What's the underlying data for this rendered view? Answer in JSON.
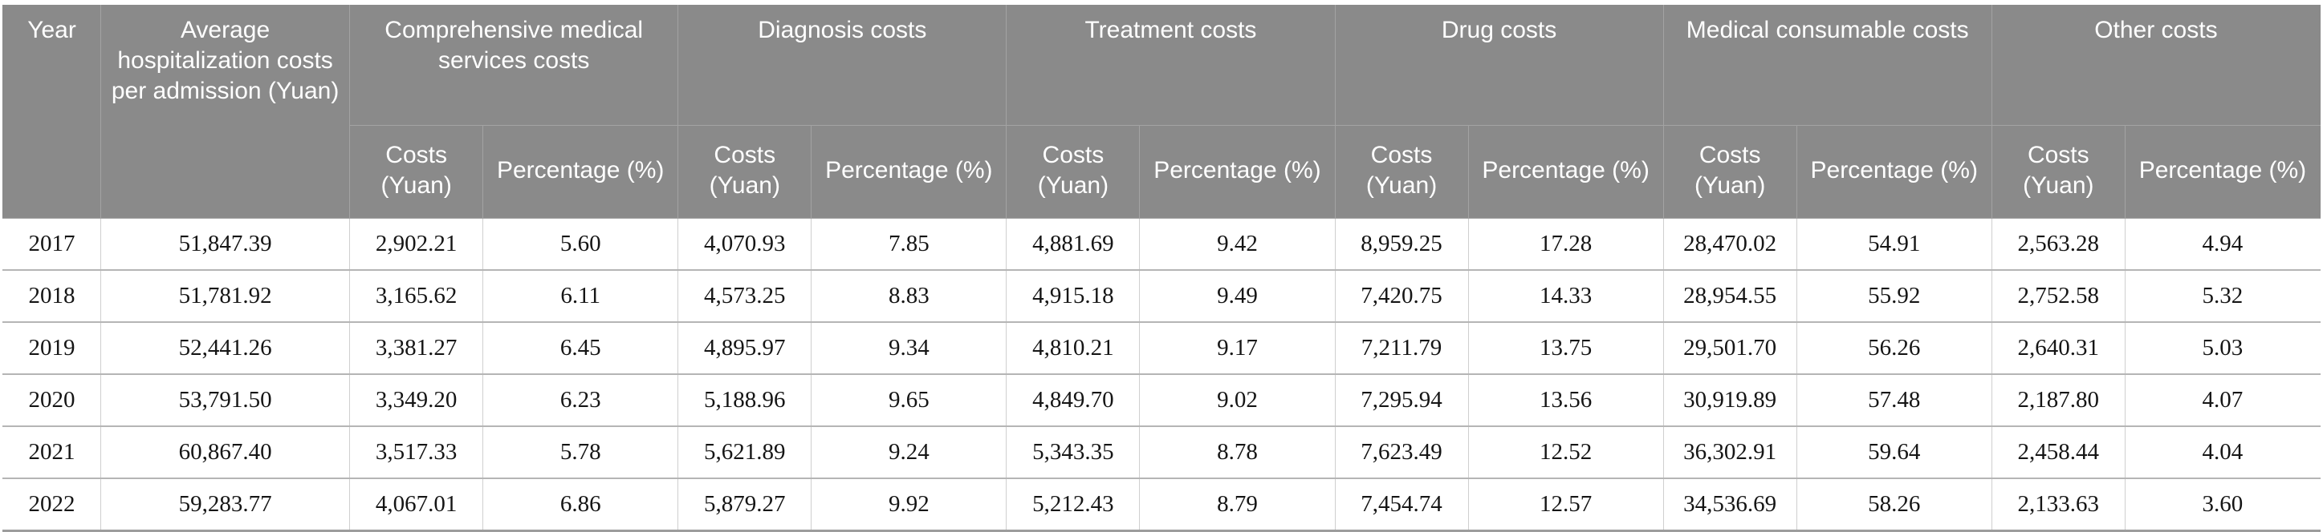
{
  "table": {
    "columns": {
      "year": "Year",
      "average": "Average hospitalization costs per admission (Yuan)",
      "costs": "Costs (Yuan)",
      "percentage": "Percentage (%)"
    },
    "groups": [
      "Comprehensive medical services costs",
      "Diagnosis costs",
      "Treatment costs",
      "Drug costs",
      "Medical consumable costs",
      "Other costs"
    ],
    "rows": [
      {
        "year": "2017",
        "average": "51,847.39",
        "values": [
          "2,902.21",
          "5.60",
          "4,070.93",
          "7.85",
          "4,881.69",
          "9.42",
          "8,959.25",
          "17.28",
          "28,470.02",
          "54.91",
          "2,563.28",
          "4.94"
        ]
      },
      {
        "year": "2018",
        "average": "51,781.92",
        "values": [
          "3,165.62",
          "6.11",
          "4,573.25",
          "8.83",
          "4,915.18",
          "9.49",
          "7,420.75",
          "14.33",
          "28,954.55",
          "55.92",
          "2,752.58",
          "5.32"
        ]
      },
      {
        "year": "2019",
        "average": "52,441.26",
        "values": [
          "3,381.27",
          "6.45",
          "4,895.97",
          "9.34",
          "4,810.21",
          "9.17",
          "7,211.79",
          "13.75",
          "29,501.70",
          "56.26",
          "2,640.31",
          "5.03"
        ]
      },
      {
        "year": "2020",
        "average": "53,791.50",
        "values": [
          "3,349.20",
          "6.23",
          "5,188.96",
          "9.65",
          "4,849.70",
          "9.02",
          "7,295.94",
          "13.56",
          "30,919.89",
          "57.48",
          "2,187.80",
          "4.07"
        ]
      },
      {
        "year": "2021",
        "average": "60,867.40",
        "values": [
          "3,517.33",
          "5.78",
          "5,621.89",
          "9.24",
          "5,343.35",
          "8.78",
          "7,623.49",
          "12.52",
          "36,302.91",
          "59.64",
          "2,458.44",
          "4.04"
        ]
      },
      {
        "year": "2022",
        "average": "59,283.77",
        "values": [
          "4,067.01",
          "6.86",
          "5,879.27",
          "9.92",
          "5,212.43",
          "8.79",
          "7,454.74",
          "12.57",
          "34,536.69",
          "58.26",
          "2,133.63",
          "3.60"
        ]
      }
    ]
  },
  "colors": {
    "header_background": "#8a8a8a",
    "header_text": "#ffffff",
    "header_divider": "#a3a3a3",
    "row_divider": "#b5b5b5",
    "column_divider": "#cfcfcf",
    "body_text": "#151515"
  }
}
